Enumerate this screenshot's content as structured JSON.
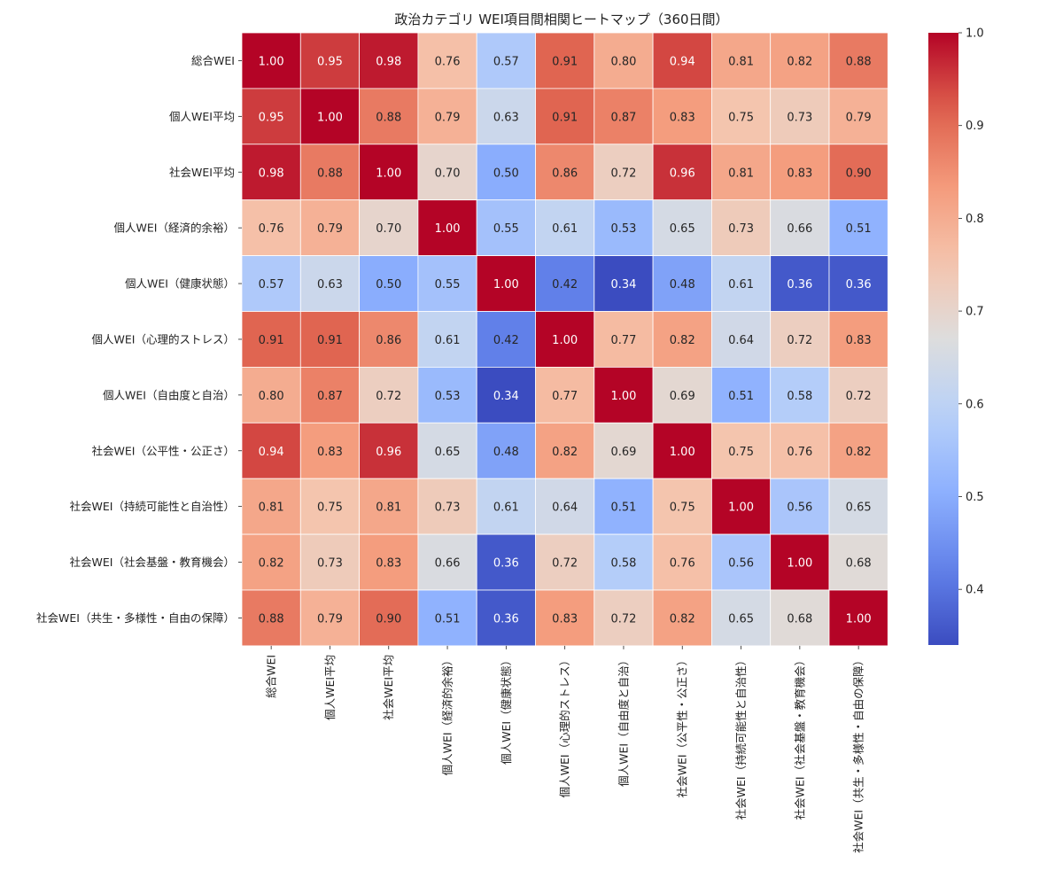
{
  "chart_data": {
    "type": "heatmap",
    "title": "政治カテゴリ WEI項目間相関ヒートマップ（360日間）",
    "labels": [
      "総合WEI",
      "個人WEI平均",
      "社会WEI平均",
      "個人WEI（経済的余裕）",
      "個人WEI（健康状態）",
      "個人WEI（心理的ストレス）",
      "個人WEI（自由度と自治）",
      "社会WEI（公平性・公正さ）",
      "社会WEI（持続可能性と自治性）",
      "社会WEI（社会基盤・教育機会）",
      "社会WEI（共生・多様性・自由の保障）"
    ],
    "matrix": [
      [
        1.0,
        0.95,
        0.98,
        0.76,
        0.57,
        0.91,
        0.8,
        0.94,
        0.81,
        0.82,
        0.88
      ],
      [
        0.95,
        1.0,
        0.88,
        0.79,
        0.63,
        0.91,
        0.87,
        0.83,
        0.75,
        0.73,
        0.79
      ],
      [
        0.98,
        0.88,
        1.0,
        0.7,
        0.5,
        0.86,
        0.72,
        0.96,
        0.81,
        0.83,
        0.9
      ],
      [
        0.76,
        0.79,
        0.7,
        1.0,
        0.55,
        0.61,
        0.53,
        0.65,
        0.73,
        0.66,
        0.51
      ],
      [
        0.57,
        0.63,
        0.5,
        0.55,
        1.0,
        0.42,
        0.34,
        0.48,
        0.61,
        0.36,
        0.36
      ],
      [
        0.91,
        0.91,
        0.86,
        0.61,
        0.42,
        1.0,
        0.77,
        0.82,
        0.64,
        0.72,
        0.83
      ],
      [
        0.8,
        0.87,
        0.72,
        0.53,
        0.34,
        0.77,
        1.0,
        0.69,
        0.51,
        0.58,
        0.72
      ],
      [
        0.94,
        0.83,
        0.96,
        0.65,
        0.48,
        0.82,
        0.69,
        1.0,
        0.75,
        0.76,
        0.82
      ],
      [
        0.81,
        0.75,
        0.81,
        0.73,
        0.61,
        0.64,
        0.51,
        0.75,
        1.0,
        0.56,
        0.65
      ],
      [
        0.82,
        0.73,
        0.83,
        0.66,
        0.36,
        0.72,
        0.58,
        0.76,
        0.56,
        1.0,
        0.68
      ],
      [
        0.88,
        0.79,
        0.9,
        0.51,
        0.36,
        0.83,
        0.72,
        0.82,
        0.65,
        0.68,
        1.0
      ]
    ],
    "colorbar": {
      "min": 0.34,
      "max": 1.0,
      "ticks": [
        0.4,
        0.5,
        0.6,
        0.7,
        0.8,
        0.9,
        1.0
      ],
      "tick_labels": [
        "0.4",
        "0.5",
        "0.6",
        "0.7",
        "0.8",
        "0.9",
        "1.0"
      ]
    },
    "colormap": "coolwarm"
  }
}
